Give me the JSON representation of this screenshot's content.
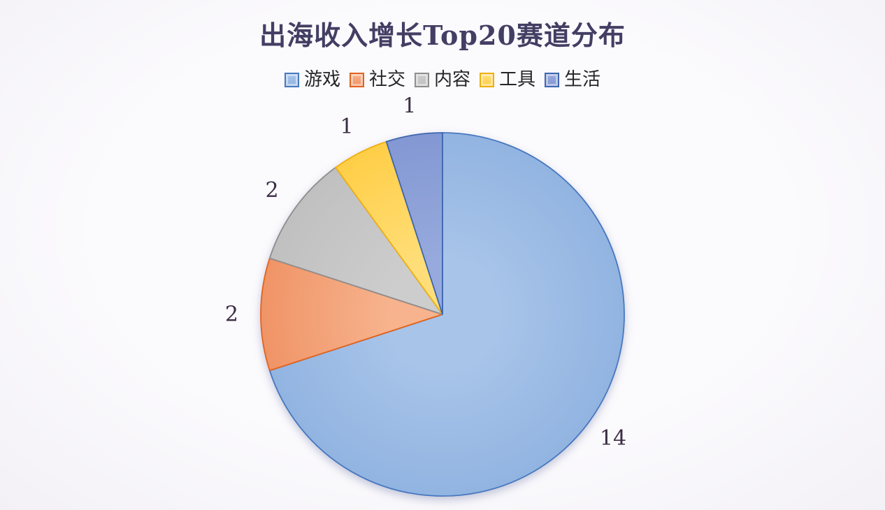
{
  "chart_data": {
    "type": "pie",
    "title": "出海收入增长Top20赛道分布",
    "legend_position": "top",
    "direction": "clockwise",
    "start_angle_deg": 0,
    "total": 20,
    "categories": [
      "游戏",
      "社交",
      "内容",
      "工具",
      "生活"
    ],
    "values": [
      14,
      2,
      2,
      1,
      1
    ],
    "series": [
      {
        "name": "games",
        "label": "游戏",
        "value": 14,
        "fill_center": "#A8C4E9",
        "fill_edge": "#92B4E1",
        "stroke": "#4678BF"
      },
      {
        "name": "social",
        "label": "社交",
        "value": 2,
        "fill_center": "#F7B38D",
        "fill_edge": "#F09467",
        "stroke": "#E2631F"
      },
      {
        "name": "content",
        "label": "内容",
        "value": 2,
        "fill_center": "#CDCDCD",
        "fill_edge": "#C0C0C0",
        "stroke": "#8E8E8E"
      },
      {
        "name": "tools",
        "label": "工具",
        "value": 1,
        "fill_center": "#FFDE79",
        "fill_edge": "#FFCE47",
        "stroke": "#EFAF0D"
      },
      {
        "name": "life",
        "label": "生活",
        "value": 1,
        "fill_center": "#97AADD",
        "fill_edge": "#8398D3",
        "stroke": "#3E66B0"
      }
    ],
    "value_label_color": "#3B2D44",
    "title_color": "#433E63",
    "legend_text_color": "#262626",
    "background_color": "#FAF9FC",
    "grid": false
  }
}
